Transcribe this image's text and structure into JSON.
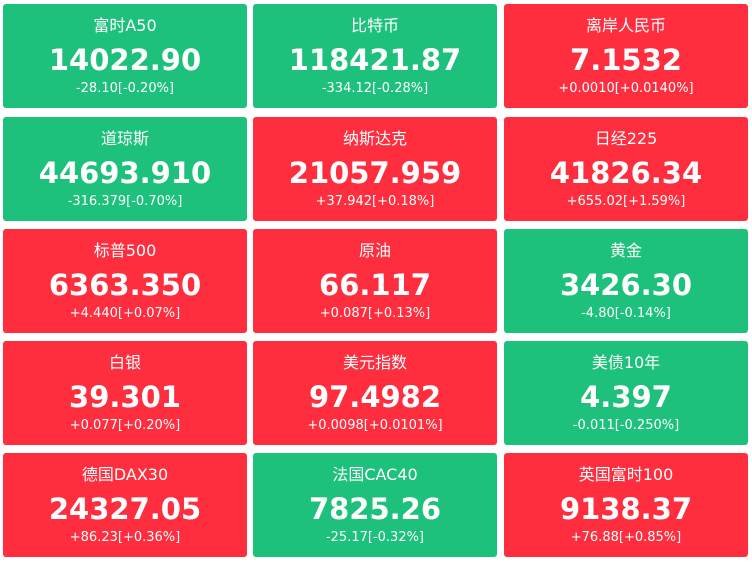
{
  "tiles": [
    {
      "name": "富时A50",
      "price": "14022.90",
      "change": "-28.10[-0.20%]",
      "color": "#1dc17b"
    },
    {
      "name": "比特币",
      "price": "118421.87",
      "change": "-334.12[-0.28%]",
      "color": "#1dc17b"
    },
    {
      "name": "离岸人民币",
      "price": "7.1532",
      "change": "+0.0010[+0.0140%]",
      "color": "#fe2e3f"
    },
    {
      "name": "道琼斯",
      "price": "44693.910",
      "change": "-316.379[-0.70%]",
      "color": "#1dc17b"
    },
    {
      "name": "纳斯达克",
      "price": "21057.959",
      "change": "+37.942[+0.18%]",
      "color": "#fe2e3f"
    },
    {
      "name": "日经225",
      "price": "41826.34",
      "change": "+655.02[+1.59%]",
      "color": "#fe2e3f"
    },
    {
      "name": "标普500",
      "price": "6363.350",
      "change": "+4.440[+0.07%]",
      "color": "#fe2e3f"
    },
    {
      "name": "原油",
      "price": "66.117",
      "change": "+0.087[+0.13%]",
      "color": "#fe2e3f"
    },
    {
      "name": "黄金",
      "price": "3426.30",
      "change": "-4.80[-0.14%]",
      "color": "#1dc17b"
    },
    {
      "name": "白银",
      "price": "39.301",
      "change": "+0.077[+0.20%]",
      "color": "#fe2e3f"
    },
    {
      "name": "美元指数",
      "price": "97.4982",
      "change": "+0.0098[+0.0101%]",
      "color": "#fe2e3f"
    },
    {
      "name": "美债10年",
      "price": "4.397",
      "change": "-0.011[-0.250%]",
      "color": "#1dc17b"
    },
    {
      "name": "德国DAX30",
      "price": "24327.05",
      "change": "+86.23[+0.36%]",
      "color": "#fe2e3f"
    },
    {
      "name": "法国CAC40",
      "price": "7825.26",
      "change": "-25.17[-0.32%]",
      "color": "#1dc17b"
    },
    {
      "name": "英国富时100",
      "price": "9138.37",
      "change": "+76.88[+0.85%]",
      "color": "#fe2e3f"
    }
  ]
}
